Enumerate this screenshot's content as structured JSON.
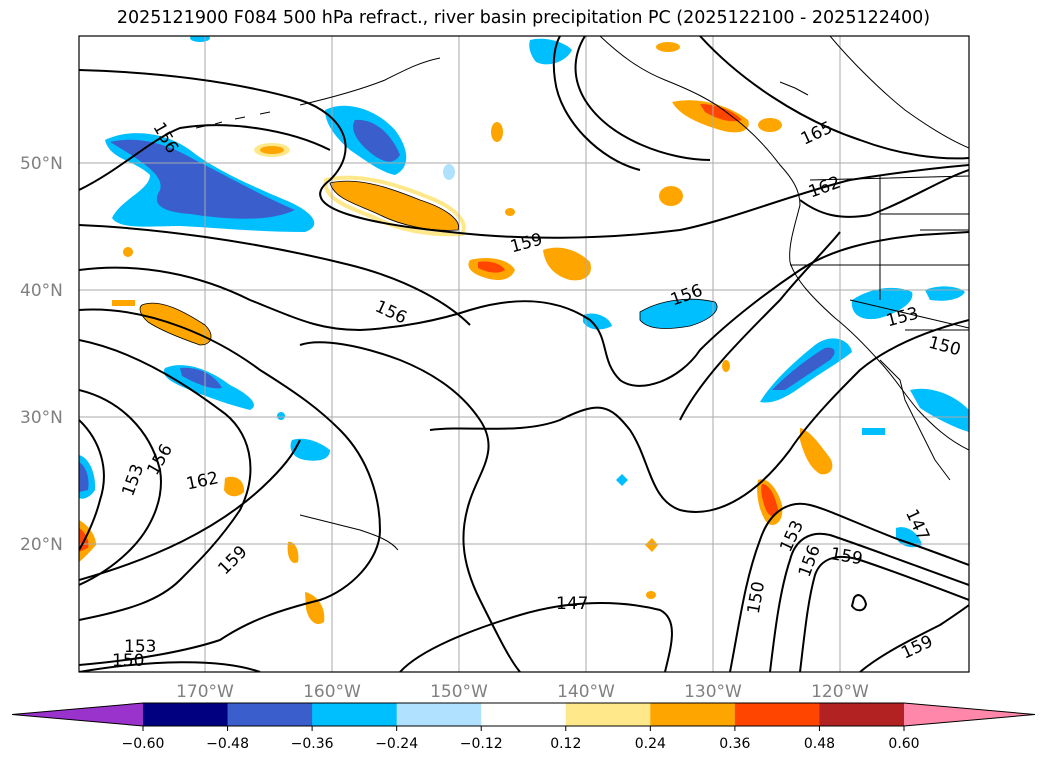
{
  "title": "2025121900 F084 500 hPa refract., river basin precipitation PC (2025122100 - 2025122400)",
  "lat_labels": [
    "50°N",
    "40°N",
    "30°N",
    "20°N"
  ],
  "lon_labels": [
    "170°W",
    "160°W",
    "150°W",
    "140°W",
    "130°W",
    "120°W"
  ],
  "contour_labels": [
    "156",
    "159",
    "156",
    "156",
    "165",
    "162",
    "153",
    "150",
    "153",
    "156",
    "162",
    "159",
    "147",
    "150",
    "153",
    "156",
    "159",
    "159",
    "150",
    "153",
    "147"
  ],
  "colorbar": {
    "ticks": [
      "−0.60",
      "−0.48",
      "−0.36",
      "−0.24",
      "−0.12",
      "0.12",
      "0.24",
      "0.36",
      "0.48",
      "0.60"
    ],
    "colors": [
      "#9933cc",
      "#000080",
      "#3a5fcd",
      "#00bfff",
      "#b0e2ff",
      "#ffffff",
      "#ffe88a",
      "#ffa500",
      "#ff4500",
      "#b22222",
      "#ff88aa"
    ]
  }
}
